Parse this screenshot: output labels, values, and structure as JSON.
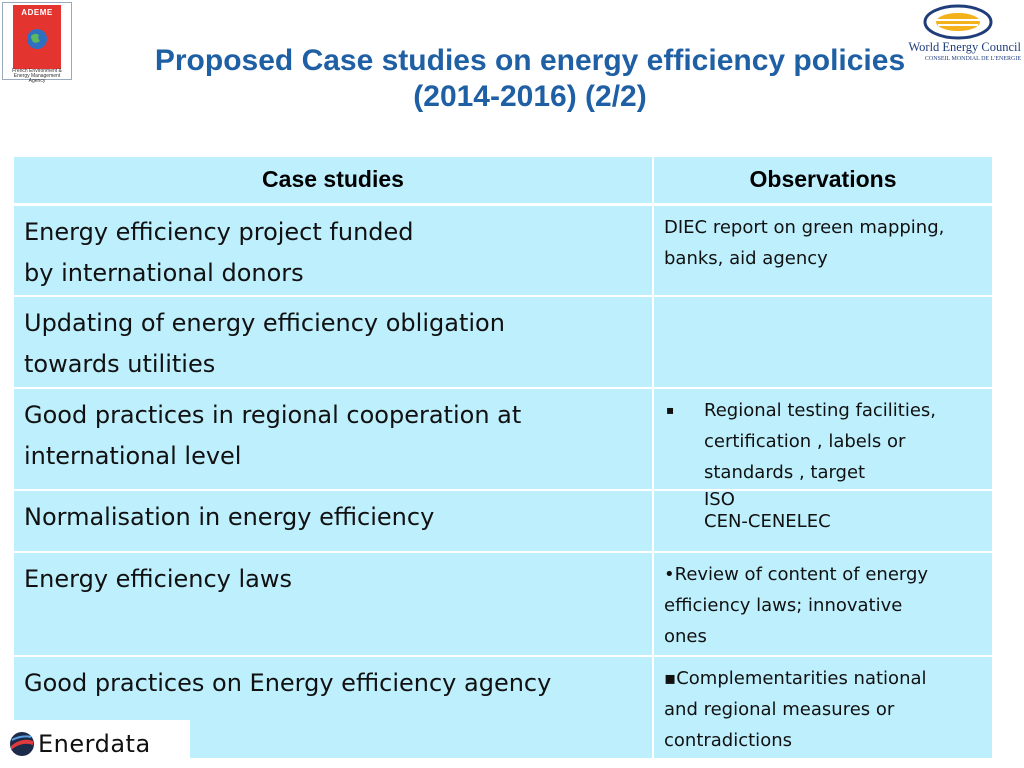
{
  "logos": {
    "ademe": {
      "word": "ADEME",
      "caption": "French Environment & Energy Management Agency"
    },
    "wec": {
      "name": "World Energy Council",
      "subtitle": "CONSEIL MONDIAL DE L'ENERGIE"
    },
    "enerdata": {
      "word": "Enerdata"
    }
  },
  "title": {
    "line1": "Proposed Case studies on energy efficiency policies",
    "line2": "(2014-2016) (2/2)"
  },
  "table": {
    "headers": [
      "Case studies",
      "Observations"
    ],
    "rows": [
      {
        "case": "Energy efficiency project funded\n by international donors",
        "observation": "DIEC report on green\nmapping, banks, aid agency"
      },
      {
        "case": "Updating of energy efficiency obligation\n towards utilities",
        "observation": ""
      },
      {
        "case": "Good practices in regional cooperation at\n     international level",
        "bullet": "▪",
        "observation": "Regional testing facilities,\ncertification , labels or\nstandards , target"
      },
      {
        "case": "Normalisation in energy efficiency",
        "observation": "ISO\nCEN-CENELEC"
      },
      {
        "case": "Energy efficiency laws",
        "observation": "•Review of content of energy\nefficiency  laws; innovative\nones"
      },
      {
        "case": "Good practices on Energy efficiency agency",
        "observation": "▪Complementarities  national\nand regional measures  or\ncontradictions"
      }
    ]
  },
  "colors": {
    "title": "#1f5fa3",
    "cell_background": "#bdeffd",
    "grid_lines": "#ffffff",
    "ademe_red": "#e3342f",
    "wec_blue": "#1f3d7a"
  }
}
